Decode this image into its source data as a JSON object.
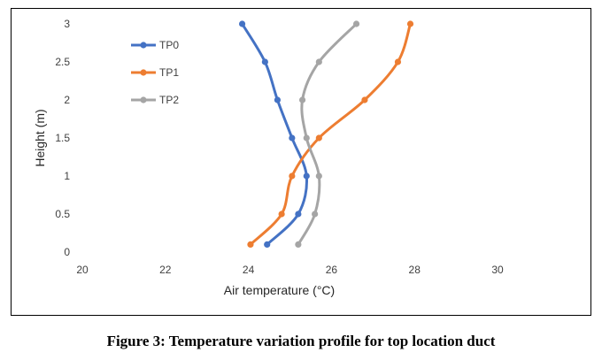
{
  "caption": "Figure 3: Temperature variation profile for top location duct",
  "chart_data": {
    "type": "scatter",
    "title": "",
    "xlabel": "Air temperature (°C)",
    "ylabel": "Height (m)",
    "xlim": [
      20,
      30
    ],
    "ylim": [
      0,
      3
    ],
    "xticks": [
      20,
      22,
      24,
      26,
      28,
      30
    ],
    "yticks": [
      0,
      0.5,
      1,
      1.5,
      2,
      2.5,
      3
    ],
    "grid": false,
    "legend_position": "top-left",
    "series": [
      {
        "name": "TP0",
        "color": "#4472C4",
        "points": [
          [
            24.45,
            0.1
          ],
          [
            25.2,
            0.5
          ],
          [
            25.4,
            1.0
          ],
          [
            25.05,
            1.5
          ],
          [
            24.7,
            2.0
          ],
          [
            24.4,
            2.5
          ],
          [
            23.85,
            3.0
          ]
        ]
      },
      {
        "name": "TP1",
        "color": "#ED7D31",
        "points": [
          [
            24.05,
            0.1
          ],
          [
            24.8,
            0.5
          ],
          [
            25.05,
            1.0
          ],
          [
            25.7,
            1.5
          ],
          [
            26.8,
            2.0
          ],
          [
            27.6,
            2.5
          ],
          [
            27.9,
            3.0
          ]
        ]
      },
      {
        "name": "TP2",
        "color": "#A5A5A5",
        "points": [
          [
            25.2,
            0.1
          ],
          [
            25.6,
            0.5
          ],
          [
            25.7,
            1.0
          ],
          [
            25.4,
            1.5
          ],
          [
            25.3,
            2.0
          ],
          [
            25.7,
            2.5
          ],
          [
            26.6,
            3.0
          ]
        ]
      }
    ]
  }
}
